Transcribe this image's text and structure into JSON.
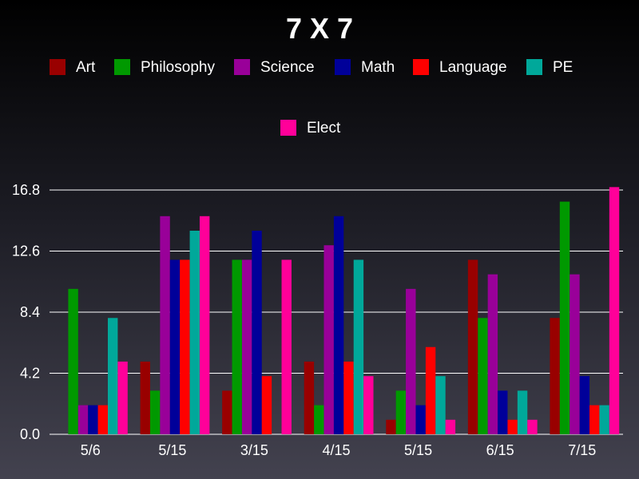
{
  "chart_data": {
    "type": "bar",
    "title": "7 X 7",
    "categories": [
      "5/6",
      "5/15",
      "3/15",
      "4/15",
      "5/15",
      "6/15",
      "7/15"
    ],
    "series": [
      {
        "name": "Art",
        "color": "#990000",
        "values": [
          0,
          5,
          3,
          5,
          1,
          12,
          8
        ]
      },
      {
        "name": "Philosophy",
        "color": "#009900",
        "values": [
          10,
          3,
          12,
          2,
          3,
          8,
          16
        ]
      },
      {
        "name": "Science",
        "color": "#990099",
        "values": [
          2,
          15,
          12,
          13,
          10,
          11,
          11
        ]
      },
      {
        "name": "Math",
        "color": "#000099",
        "values": [
          2,
          12,
          14,
          15,
          2,
          3,
          4
        ]
      },
      {
        "name": "Language",
        "color": "#ff0000",
        "values": [
          2,
          12,
          4,
          5,
          6,
          1,
          2
        ]
      },
      {
        "name": "PE",
        "color": "#00a89a",
        "values": [
          8,
          14,
          0,
          12,
          4,
          3,
          2
        ]
      },
      {
        "name": "Elect",
        "color": "#ff0099",
        "values": [
          5,
          15,
          12,
          4,
          1,
          1,
          17
        ]
      }
    ],
    "yticks": [
      "0.0",
      "4.2",
      "8.4",
      "12.6",
      "16.8"
    ],
    "ylim": [
      0,
      16.8
    ],
    "xlabel": "",
    "ylabel": "",
    "grid": true,
    "legend_position": "top"
  }
}
